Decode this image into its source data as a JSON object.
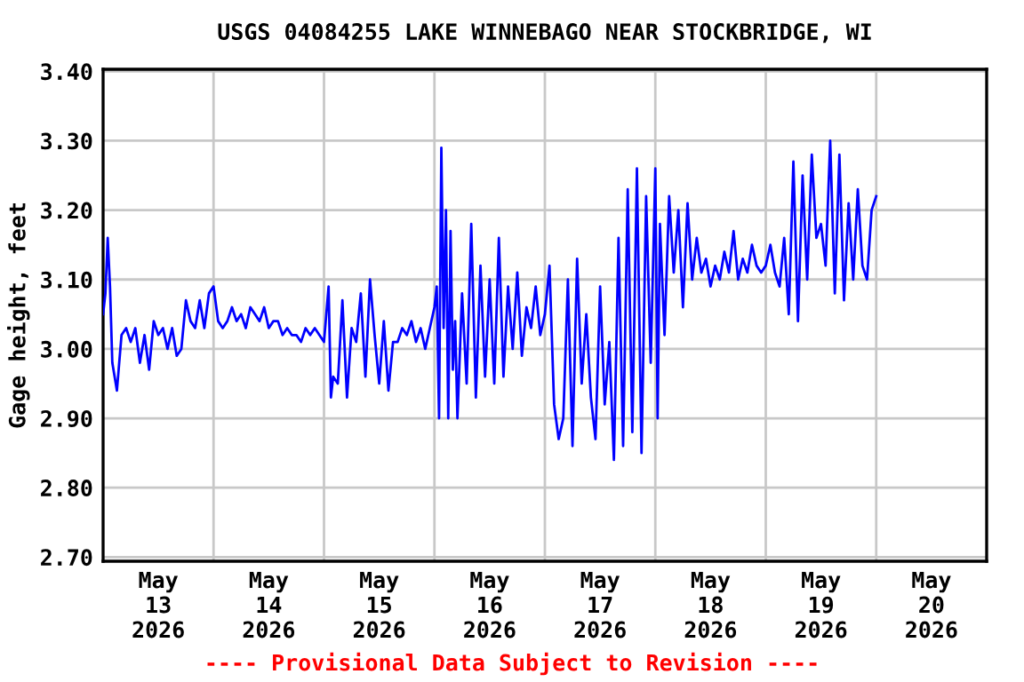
{
  "chart_data": {
    "type": "line",
    "title": "USGS 04084255 LAKE WINNEBAGO NEAR STOCKBRIDGE, WI",
    "ylabel": "Gage height, feet",
    "annotations": [
      "---- Provisional Data Subject to Revision ----"
    ],
    "grid": true,
    "legend": false,
    "marker": "none",
    "line_style": "solid",
    "xlim": [
      "2026-05-13T00:00",
      "2026-05-21T00:00"
    ],
    "xticks": [
      {
        "value": "2026-05-13T12:00",
        "label": "May\n13\n2026"
      },
      {
        "value": "2026-05-14T00:00",
        "label": null
      },
      {
        "value": "2026-05-14T12:00",
        "label": "May\n14\n2026"
      },
      {
        "value": "2026-05-15T00:00",
        "label": null
      },
      {
        "value": "2026-05-15T12:00",
        "label": "May\n15\n2026"
      },
      {
        "value": "2026-05-16T00:00",
        "label": null
      },
      {
        "value": "2026-05-16T12:00",
        "label": "May\n16\n2026"
      },
      {
        "value": "2026-05-17T00:00",
        "label": null
      },
      {
        "value": "2026-05-17T12:00",
        "label": "May\n17\n2026"
      },
      {
        "value": "2026-05-18T00:00",
        "label": null
      },
      {
        "value": "2026-05-18T12:00",
        "label": "May\n18\n2026"
      },
      {
        "value": "2026-05-19T00:00",
        "label": null
      },
      {
        "value": "2026-05-19T12:00",
        "label": "May\n19\n2026"
      },
      {
        "value": "2026-05-20T00:00",
        "label": null
      },
      {
        "value": "2026-05-20T12:00",
        "label": "May\n20\n2026"
      }
    ],
    "ylim": [
      2.694,
      3.403
    ],
    "yticks": [
      {
        "value": 2.7,
        "label": "2.70"
      },
      {
        "value": 2.8,
        "label": "2.80"
      },
      {
        "value": 2.9,
        "label": "2.90"
      },
      {
        "value": 3.0,
        "label": "3.00"
      },
      {
        "value": 3.1,
        "label": "3.10"
      },
      {
        "value": 3.2,
        "label": "3.20"
      },
      {
        "value": 3.3,
        "label": "3.30"
      },
      {
        "value": 3.4,
        "label": "3.40"
      }
    ],
    "x": [
      "2026-05-13T00:00",
      "2026-05-13T00:30",
      "2026-05-13T01:00",
      "2026-05-13T01:30",
      "2026-05-13T02:00",
      "2026-05-13T03:00",
      "2026-05-13T04:00",
      "2026-05-13T05:00",
      "2026-05-13T06:00",
      "2026-05-13T07:00",
      "2026-05-13T08:00",
      "2026-05-13T09:00",
      "2026-05-13T10:00",
      "2026-05-13T11:00",
      "2026-05-13T12:00",
      "2026-05-13T13:00",
      "2026-05-13T14:00",
      "2026-05-13T15:00",
      "2026-05-13T16:00",
      "2026-05-13T17:00",
      "2026-05-13T18:00",
      "2026-05-13T19:00",
      "2026-05-13T20:00",
      "2026-05-13T21:00",
      "2026-05-13T22:00",
      "2026-05-13T23:00",
      "2026-05-14T00:00",
      "2026-05-14T01:00",
      "2026-05-14T02:00",
      "2026-05-14T03:00",
      "2026-05-14T04:00",
      "2026-05-14T05:00",
      "2026-05-14T06:00",
      "2026-05-14T07:00",
      "2026-05-14T08:00",
      "2026-05-14T09:00",
      "2026-05-14T10:00",
      "2026-05-14T11:00",
      "2026-05-14T12:00",
      "2026-05-14T13:00",
      "2026-05-14T14:00",
      "2026-05-14T15:00",
      "2026-05-14T16:00",
      "2026-05-14T17:00",
      "2026-05-14T18:00",
      "2026-05-14T19:00",
      "2026-05-14T20:00",
      "2026-05-14T21:00",
      "2026-05-14T22:00",
      "2026-05-14T23:00",
      "2026-05-15T00:00",
      "2026-05-15T01:00",
      "2026-05-15T01:30",
      "2026-05-15T02:00",
      "2026-05-15T03:00",
      "2026-05-15T04:00",
      "2026-05-15T05:00",
      "2026-05-15T06:00",
      "2026-05-15T07:00",
      "2026-05-15T08:00",
      "2026-05-15T09:00",
      "2026-05-15T10:00",
      "2026-05-15T11:00",
      "2026-05-15T12:00",
      "2026-05-15T13:00",
      "2026-05-15T14:00",
      "2026-05-15T15:00",
      "2026-05-15T16:00",
      "2026-05-15T17:00",
      "2026-05-15T18:00",
      "2026-05-15T19:00",
      "2026-05-15T20:00",
      "2026-05-15T21:00",
      "2026-05-15T22:00",
      "2026-05-15T23:00",
      "2026-05-16T00:00",
      "2026-05-16T00:30",
      "2026-05-16T01:00",
      "2026-05-16T01:30",
      "2026-05-16T02:00",
      "2026-05-16T02:30",
      "2026-05-16T03:00",
      "2026-05-16T03:30",
      "2026-05-16T04:00",
      "2026-05-16T04:30",
      "2026-05-16T05:00",
      "2026-05-16T06:00",
      "2026-05-16T07:00",
      "2026-05-16T08:00",
      "2026-05-16T09:00",
      "2026-05-16T10:00",
      "2026-05-16T11:00",
      "2026-05-16T12:00",
      "2026-05-16T13:00",
      "2026-05-16T14:00",
      "2026-05-16T15:00",
      "2026-05-16T16:00",
      "2026-05-16T17:00",
      "2026-05-16T18:00",
      "2026-05-16T19:00",
      "2026-05-16T20:00",
      "2026-05-16T21:00",
      "2026-05-16T22:00",
      "2026-05-16T23:00",
      "2026-05-17T00:00",
      "2026-05-17T01:00",
      "2026-05-17T02:00",
      "2026-05-17T03:00",
      "2026-05-17T04:00",
      "2026-05-17T05:00",
      "2026-05-17T06:00",
      "2026-05-17T07:00",
      "2026-05-17T08:00",
      "2026-05-17T09:00",
      "2026-05-17T10:00",
      "2026-05-17T11:00",
      "2026-05-17T12:00",
      "2026-05-17T13:00",
      "2026-05-17T14:00",
      "2026-05-17T15:00",
      "2026-05-17T16:00",
      "2026-05-17T17:00",
      "2026-05-17T18:00",
      "2026-05-17T19:00",
      "2026-05-17T20:00",
      "2026-05-17T21:00",
      "2026-05-17T22:00",
      "2026-05-17T23:00",
      "2026-05-18T00:00",
      "2026-05-18T00:30",
      "2026-05-18T01:00",
      "2026-05-18T02:00",
      "2026-05-18T03:00",
      "2026-05-18T04:00",
      "2026-05-18T05:00",
      "2026-05-18T06:00",
      "2026-05-18T07:00",
      "2026-05-18T08:00",
      "2026-05-18T09:00",
      "2026-05-18T10:00",
      "2026-05-18T11:00",
      "2026-05-18T12:00",
      "2026-05-18T13:00",
      "2026-05-18T14:00",
      "2026-05-18T15:00",
      "2026-05-18T16:00",
      "2026-05-18T17:00",
      "2026-05-18T18:00",
      "2026-05-18T19:00",
      "2026-05-18T20:00",
      "2026-05-18T21:00",
      "2026-05-18T22:00",
      "2026-05-18T23:00",
      "2026-05-19T00:00",
      "2026-05-19T01:00",
      "2026-05-19T02:00",
      "2026-05-19T03:00",
      "2026-05-19T04:00",
      "2026-05-19T05:00",
      "2026-05-19T06:00",
      "2026-05-19T07:00",
      "2026-05-19T08:00",
      "2026-05-19T09:00",
      "2026-05-19T10:00",
      "2026-05-19T11:00",
      "2026-05-19T12:00",
      "2026-05-19T13:00",
      "2026-05-19T14:00",
      "2026-05-19T15:00",
      "2026-05-19T16:00",
      "2026-05-19T17:00",
      "2026-05-19T18:00",
      "2026-05-19T19:00",
      "2026-05-19T20:00",
      "2026-05-19T21:00",
      "2026-05-19T22:00",
      "2026-05-19T23:00",
      "2026-05-20T00:00"
    ],
    "series": [
      {
        "color": "#0000ff",
        "values": [
          3.05,
          3.08,
          3.16,
          3.09,
          2.98,
          2.94,
          3.02,
          3.03,
          3.01,
          3.03,
          2.98,
          3.02,
          2.97,
          3.04,
          3.02,
          3.03,
          3.0,
          3.03,
          2.99,
          3.0,
          3.07,
          3.04,
          3.03,
          3.07,
          3.03,
          3.08,
          3.09,
          3.04,
          3.03,
          3.04,
          3.06,
          3.04,
          3.05,
          3.03,
          3.06,
          3.05,
          3.04,
          3.06,
          3.03,
          3.04,
          3.04,
          3.02,
          3.03,
          3.02,
          3.02,
          3.01,
          3.03,
          3.02,
          3.03,
          3.02,
          3.01,
          3.09,
          2.93,
          2.96,
          2.95,
          3.07,
          2.93,
          3.03,
          3.01,
          3.08,
          2.96,
          3.1,
          3.02,
          2.95,
          3.04,
          2.94,
          3.01,
          3.01,
          3.03,
          3.02,
          3.04,
          3.01,
          3.03,
          3.0,
          3.03,
          3.06,
          3.09,
          2.9,
          3.29,
          3.03,
          3.2,
          2.9,
          3.17,
          2.97,
          3.04,
          2.9,
          3.08,
          2.95,
          3.18,
          2.93,
          3.12,
          2.96,
          3.1,
          2.95,
          3.16,
          2.96,
          3.09,
          3.0,
          3.11,
          2.99,
          3.06,
          3.03,
          3.09,
          3.02,
          3.05,
          3.12,
          2.92,
          2.87,
          2.9,
          3.1,
          2.86,
          3.13,
          2.95,
          3.05,
          2.93,
          2.87,
          3.09,
          2.92,
          3.01,
          2.84,
          3.16,
          2.86,
          3.23,
          2.88,
          3.26,
          2.85,
          3.22,
          2.98,
          3.26,
          2.9,
          3.18,
          3.02,
          3.22,
          3.11,
          3.2,
          3.06,
          3.21,
          3.1,
          3.16,
          3.11,
          3.13,
          3.09,
          3.12,
          3.1,
          3.14,
          3.11,
          3.17,
          3.1,
          3.13,
          3.11,
          3.15,
          3.12,
          3.11,
          3.12,
          3.15,
          3.11,
          3.09,
          3.16,
          3.05,
          3.27,
          3.04,
          3.25,
          3.1,
          3.28,
          3.16,
          3.18,
          3.12,
          3.3,
          3.08,
          3.28,
          3.07,
          3.21,
          3.1,
          3.23,
          3.12,
          3.1,
          3.2,
          3.22
        ]
      }
    ]
  }
}
